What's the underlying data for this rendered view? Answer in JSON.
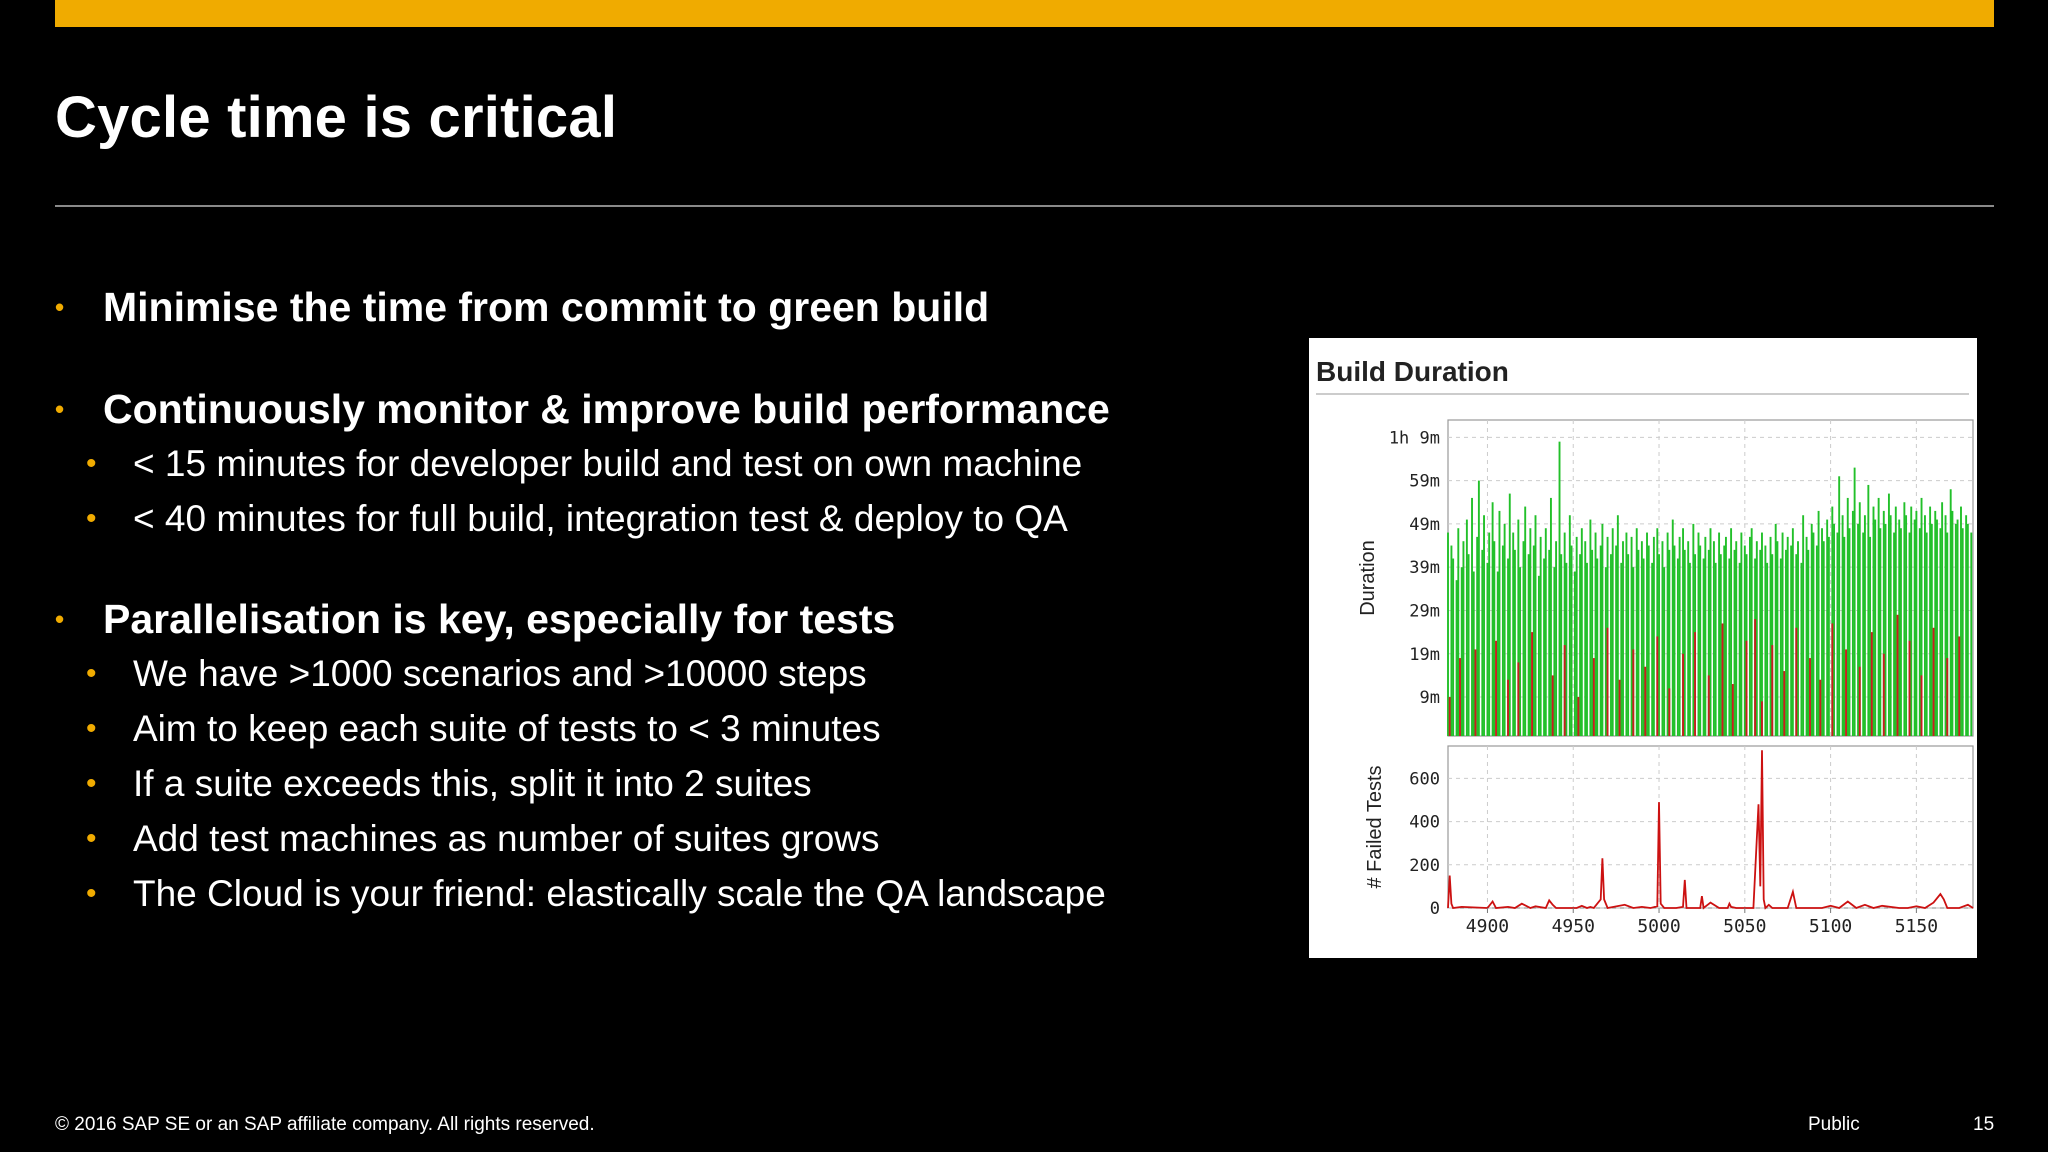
{
  "slide": {
    "title": "Cycle time is critical",
    "accent_color": "#F0AB00",
    "bullet_icon": "bullet-dot",
    "bullets": [
      {
        "text": "Minimise the time from commit to green build",
        "sub": []
      },
      {
        "text": "Continuously monitor & improve build performance",
        "sub": [
          "< 15 minutes for developer build and test on own machine",
          "< 40 minutes for full build, integration test & deploy to QA"
        ]
      },
      {
        "text": "Parallelisation is key, especially for tests",
        "sub": [
          "We have >1000 scenarios and >10000 steps",
          "Aim to keep each suite of tests to < 3 minutes",
          "If a suite exceeds this, split it into 2 suites",
          "Add test machines as number of suites grows",
          "The Cloud is your friend: elastically scale the QA landscape"
        ]
      }
    ]
  },
  "footer": {
    "copyright": "©  2016 SAP SE or an SAP affiliate company. All rights reserved.",
    "classification": "Public",
    "page_number": "15"
  },
  "chart_data": {
    "type": "bar",
    "title": "Build Duration",
    "x_ticks": [
      "4900",
      "4950",
      "5000",
      "5050",
      "5100",
      "5150"
    ],
    "x_range": [
      4877,
      5183
    ],
    "grid": true,
    "colors": {
      "success": "#22c02a",
      "failure": "#c81e1e",
      "failed_line": "#cc1111"
    },
    "panels": [
      {
        "name": "duration",
        "ylabel": "Duration",
        "y_unit": "minutes",
        "ylim": [
          0,
          73
        ],
        "y_ticks": [
          {
            "label": "1h 9m",
            "value": 69
          },
          {
            "label": "59m",
            "value": 59
          },
          {
            "label": "49m",
            "value": 49
          },
          {
            "label": "39m",
            "value": 39
          },
          {
            "label": "29m",
            "value": 29
          },
          {
            "label": "19m",
            "value": 19
          },
          {
            "label": "9m",
            "value": 9
          }
        ],
        "series": [
          {
            "status": "success",
            "x": [
              4877,
              4879,
              4880,
              4882,
              4883,
              4885,
              4886,
              4888,
              4889,
              4891,
              4892,
              4894,
              4895,
              4897,
              4898,
              4900,
              4901,
              4903,
              4904,
              4906,
              4907,
              4909,
              4910,
              4912,
              4913,
              4915,
              4916,
              4918,
              4919,
              4921,
              4922,
              4924,
              4925,
              4927,
              4928,
              4930,
              4931,
              4933,
              4934,
              4936,
              4937,
              4939,
              4940,
              4942,
              4943,
              4945,
              4946,
              4948,
              4949,
              4951,
              4952,
              4954,
              4955,
              4957,
              4958,
              4960,
              4961,
              4963,
              4964,
              4966,
              4967,
              4969,
              4970,
              4972,
              4973,
              4975,
              4976,
              4978,
              4979,
              4981,
              4982,
              4984,
              4985,
              4987,
              4988,
              4990,
              4991,
              4993,
              4994,
              4996,
              4997,
              4999,
              5000,
              5002,
              5003,
              5005,
              5006,
              5008,
              5009,
              5011,
              5012,
              5014,
              5015,
              5017,
              5018,
              5020,
              5021,
              5023,
              5024,
              5026,
              5027,
              5029,
              5030,
              5032,
              5033,
              5035,
              5036,
              5038,
              5039,
              5041,
              5042,
              5044,
              5045,
              5047,
              5048,
              5050,
              5051,
              5053,
              5054,
              5056,
              5057,
              5059,
              5060,
              5062,
              5063,
              5065,
              5066,
              5068,
              5069,
              5071,
              5072,
              5074,
              5075,
              5077,
              5078,
              5080,
              5081,
              5083,
              5084,
              5086,
              5087,
              5089,
              5090,
              5092,
              5093,
              5095,
              5096,
              5098,
              5099,
              5101,
              5102,
              5104,
              5105,
              5107,
              5108,
              5110,
              5111,
              5113,
              5114,
              5116,
              5117,
              5119,
              5120,
              5122,
              5123,
              5125,
              5126,
              5128,
              5129,
              5131,
              5132,
              5134,
              5135,
              5137,
              5138,
              5140,
              5141,
              5143,
              5144,
              5146,
              5147,
              5149,
              5150,
              5152,
              5153,
              5155,
              5156,
              5158,
              5159,
              5161,
              5162,
              5164,
              5165,
              5167,
              5168,
              5170,
              5171,
              5173,
              5174,
              5176,
              5177,
              5179,
              5180,
              5182
            ],
            "values": [
              47,
              44,
              41,
              36,
              48,
              39,
              45,
              50,
              42,
              55,
              38,
              46,
              59,
              43,
              51,
              40,
              47,
              54,
              45,
              38,
              52,
              44,
              49,
              41,
              56,
              47,
              43,
              50,
              39,
              45,
              53,
              42,
              48,
              44,
              51,
              37,
              46,
              41,
              48,
              43,
              55,
              39,
              45,
              68,
              42,
              47,
              40,
              51,
              44,
              38,
              46,
              42,
              48,
              45,
              40,
              50,
              43,
              47,
              41,
              44,
              49,
              39,
              46,
              42,
              48,
              44,
              51,
              40,
              45,
              47,
              42,
              46,
              39,
              48,
              43,
              45,
              41,
              47,
              44,
              40,
              46,
              48,
              42,
              45,
              39,
              47,
              43,
              50,
              44,
              41,
              46,
              48,
              43,
              45,
              40,
              49,
              42,
              47,
              44,
              41,
              46,
              43,
              48,
              45,
              40,
              47,
              42,
              44,
              46,
              41,
              48,
              43,
              45,
              40,
              47,
              44,
              42,
              46,
              48,
              41,
              45,
              43,
              47,
              44,
              40,
              46,
              42,
              49,
              45,
              41,
              47,
              43,
              46,
              44,
              48,
              42,
              45,
              40,
              51,
              46,
              43,
              49,
              47,
              44,
              52,
              48,
              45,
              50,
              46,
              53,
              49,
              47,
              60,
              51,
              46,
              55,
              48,
              52,
              62,
              49,
              54,
              47,
              51,
              58,
              46,
              53,
              50,
              55,
              48,
              52,
              49,
              56,
              51,
              47,
              53,
              50,
              48,
              54,
              51,
              47,
              53,
              50,
              52,
              48,
              55,
              51,
              47,
              53,
              49,
              52,
              50,
              48,
              54,
              51,
              47,
              57,
              52,
              49,
              50,
              53,
              48,
              51,
              49,
              47
            ]
          },
          {
            "status": "failure",
            "x": [
              4878,
              4884,
              4893,
              4905,
              4912,
              4918,
              4926,
              4938,
              4945,
              4953,
              4962,
              4970,
              4977,
              4985,
              4992,
              4999,
              5006,
              5014,
              5021,
              5029,
              5037,
              5043,
              5051,
              5056,
              5060,
              5066,
              5073,
              5080,
              5088,
              5094,
              5101,
              5109,
              5117,
              5124,
              5131,
              5139,
              5146,
              5153,
              5160,
              5168,
              5175
            ],
            "values": [
              9,
              18,
              20,
              22,
              13,
              17,
              24,
              14,
              21,
              9,
              18,
              25,
              13,
              20,
              16,
              23,
              11,
              19,
              24,
              14,
              26,
              12,
              22,
              27,
              8,
              21,
              15,
              25,
              18,
              13,
              26,
              20,
              16,
              24,
              19,
              28,
              22,
              14,
              25,
              18,
              23
            ]
          }
        ]
      },
      {
        "name": "failed_tests",
        "ylabel": "# Failed Tests",
        "ylim": [
          0,
          750
        ],
        "y_ticks": [
          {
            "label": "600",
            "value": 600
          },
          {
            "label": "400",
            "value": 400
          },
          {
            "label": "200",
            "value": 200
          },
          {
            "label": "0",
            "value": 0
          }
        ],
        "series": [
          {
            "status": "failure",
            "x": [
              4877,
              4878,
              4879,
              4880,
              4885,
              4900,
              4903,
              4905,
              4912,
              4916,
              4920,
              4925,
              4928,
              4934,
              4936,
              4938,
              4940,
              4952,
              4955,
              4958,
              4960,
              4962,
              4966,
              4967,
              4968,
              4970,
              4980,
              4985,
              4990,
              4995,
              4999,
              5000,
              5001,
              5003,
              5010,
              5014,
              5015,
              5016,
              5020,
              5024,
              5025,
              5026,
              5030,
              5035,
              5040,
              5041,
              5042,
              5045,
              5050,
              5055,
              5058,
              5059,
              5060,
              5061,
              5062,
              5064,
              5066,
              5070,
              5075,
              5078,
              5080,
              5085,
              5090,
              5095,
              5100,
              5105,
              5110,
              5115,
              5120,
              5125,
              5130,
              5140,
              5145,
              5150,
              5155,
              5160,
              5164,
              5166,
              5168,
              5175,
              5180,
              5183
            ],
            "values": [
              0,
              150,
              20,
              0,
              5,
              0,
              30,
              0,
              5,
              0,
              20,
              0,
              8,
              0,
              35,
              15,
              0,
              0,
              10,
              0,
              5,
              0,
              40,
              230,
              40,
              0,
              15,
              0,
              5,
              0,
              8,
              490,
              20,
              0,
              0,
              5,
              130,
              0,
              0,
              0,
              55,
              0,
              25,
              0,
              0,
              20,
              5,
              0,
              0,
              0,
              480,
              100,
              730,
              40,
              0,
              15,
              0,
              0,
              0,
              75,
              0,
              0,
              0,
              0,
              10,
              0,
              30,
              0,
              15,
              0,
              10,
              0,
              0,
              8,
              0,
              25,
              65,
              40,
              0,
              0,
              15,
              0
            ]
          }
        ]
      }
    ]
  }
}
